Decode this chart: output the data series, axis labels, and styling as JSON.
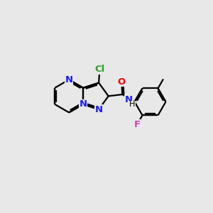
{
  "bg": "#e8e8e8",
  "bond_color": "#000000",
  "lw": 1.6,
  "N_color": "#1a1aff",
  "O_color": "#ff0000",
  "Cl_color": "#2ca02c",
  "F_color": "#cc44aa",
  "fig_w": 3.0,
  "fig_h": 3.0,
  "dpi": 100,
  "xlim": [
    0,
    10
  ],
  "ylim": [
    0,
    10
  ]
}
